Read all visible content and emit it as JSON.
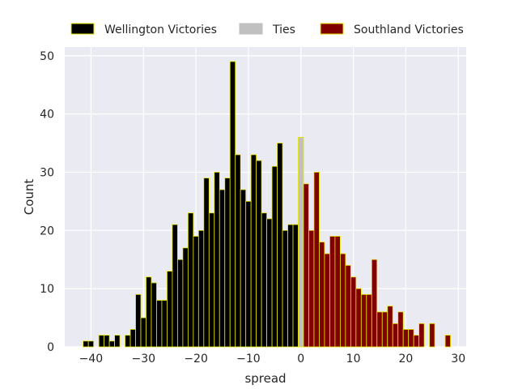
{
  "chart_data": {
    "type": "bar",
    "xlabel": "spread",
    "ylabel": "Count",
    "xlim": [
      -45,
      31.5
    ],
    "ylim": [
      0,
      51.5
    ],
    "xticks": [
      -40,
      -30,
      -20,
      -10,
      0,
      10,
      20,
      30
    ],
    "xtick_labels": [
      "−40",
      "−30",
      "−20",
      "−10",
      "0",
      "10",
      "20",
      "30"
    ],
    "yticks": [
      0,
      10,
      20,
      30,
      40,
      50
    ],
    "ytick_labels": [
      "0",
      "10",
      "20",
      "30",
      "40",
      "50"
    ],
    "grid": true,
    "legend_position": "top",
    "bar_edge_color": "#e6e600",
    "background_color": "#eaeaf2",
    "series": [
      {
        "name": "Wellington Victories",
        "color": "#000000",
        "x": [
          -41,
          -40,
          -38,
          -37,
          -36,
          -35,
          -33,
          -32,
          -31,
          -30,
          -29,
          -28,
          -27,
          -26,
          -25,
          -24,
          -23,
          -22,
          -21,
          -20,
          -19,
          -18,
          -17,
          -16,
          -15,
          -14,
          -13,
          -12,
          -11,
          -10,
          -9,
          -8,
          -7,
          -6,
          -5,
          -4,
          -3,
          -2,
          -1
        ],
        "values": [
          1,
          1,
          2,
          2,
          1,
          2,
          2,
          3,
          9,
          5,
          12,
          11,
          8,
          8,
          13,
          21,
          15,
          17,
          23,
          19,
          20,
          29,
          23,
          30,
          27,
          29,
          49,
          33,
          27,
          25,
          33,
          32,
          23,
          22,
          31,
          35,
          20,
          21,
          21
        ]
      },
      {
        "name": "Ties",
        "color": "#c0c0c0",
        "x": [
          0
        ],
        "values": [
          36
        ]
      },
      {
        "name": "Southland Victories",
        "color": "#800000",
        "x": [
          1,
          2,
          3,
          4,
          5,
          6,
          7,
          8,
          9,
          10,
          11,
          12,
          13,
          14,
          15,
          16,
          17,
          18,
          19,
          20,
          21,
          22,
          23,
          25,
          28
        ],
        "values": [
          28,
          20,
          30,
          18,
          16,
          19,
          19,
          16,
          14,
          12,
          10,
          9,
          9,
          15,
          6,
          6,
          7,
          4,
          6,
          3,
          3,
          2,
          4,
          4,
          2
        ]
      }
    ]
  }
}
